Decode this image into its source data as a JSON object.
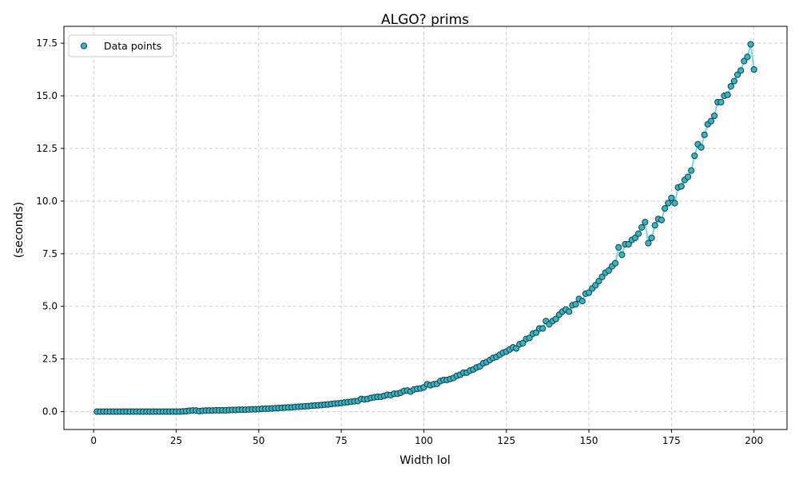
{
  "chart_data": {
    "type": "scatter",
    "title": "ALGO? prims",
    "xlabel": "Width lol",
    "ylabel": "(seconds)",
    "xlim": [
      -9,
      210
    ],
    "ylim": [
      -0.85,
      18.3
    ],
    "xticks": [
      0,
      25,
      50,
      75,
      100,
      125,
      150,
      175,
      200
    ],
    "yticks": [
      0.0,
      2.5,
      5.0,
      7.5,
      10.0,
      12.5,
      15.0,
      17.5
    ],
    "grid": true,
    "legend_position": "top-left",
    "colors": {
      "marker_fill": "#2bb8c9",
      "marker_edge": "#1f3b3e",
      "line": "#5bd3dd",
      "grid": "#cccccc"
    },
    "series": [
      {
        "name": "Data points",
        "x": [
          1,
          2,
          3,
          4,
          5,
          6,
          7,
          8,
          9,
          10,
          11,
          12,
          13,
          14,
          15,
          16,
          17,
          18,
          19,
          20,
          21,
          22,
          23,
          24,
          25,
          26,
          27,
          28,
          29,
          30,
          31,
          32,
          33,
          34,
          35,
          36,
          37,
          38,
          39,
          40,
          41,
          42,
          43,
          44,
          45,
          46,
          47,
          48,
          49,
          50,
          51,
          52,
          53,
          54,
          55,
          56,
          57,
          58,
          59,
          60,
          61,
          62,
          63,
          64,
          65,
          66,
          67,
          68,
          69,
          70,
          71,
          72,
          73,
          74,
          75,
          76,
          77,
          78,
          79,
          80,
          81,
          82,
          83,
          84,
          85,
          86,
          87,
          88,
          89,
          90,
          91,
          92,
          93,
          94,
          95,
          96,
          97,
          98,
          99,
          100,
          101,
          102,
          103,
          104,
          105,
          106,
          107,
          108,
          109,
          110,
          111,
          112,
          113,
          114,
          115,
          116,
          117,
          118,
          119,
          120,
          121,
          122,
          123,
          124,
          125,
          126,
          127,
          128,
          129,
          130,
          131,
          132,
          133,
          134,
          135,
          136,
          137,
          138,
          139,
          140,
          141,
          142,
          143,
          144,
          145,
          146,
          147,
          148,
          149,
          150,
          151,
          152,
          153,
          154,
          155,
          156,
          157,
          158,
          159,
          160,
          161,
          162,
          163,
          164,
          165,
          166,
          167,
          168,
          169,
          170,
          171,
          172,
          173,
          174,
          175,
          176,
          177,
          178,
          179,
          180,
          181,
          182,
          183,
          184,
          185,
          186,
          187,
          188,
          189,
          190,
          191,
          192,
          193,
          194,
          195,
          196,
          197,
          198,
          199,
          200
        ],
        "y": [
          0.0,
          0.0,
          0.0,
          0.0,
          0.0,
          0.0,
          0.0,
          0.0,
          0.0,
          0.0,
          0.0,
          0.0,
          0.0,
          0.0,
          0.0,
          0.0,
          0.0,
          0.0,
          0.0,
          0.0,
          0.0,
          0.0,
          0.0,
          0.0,
          0.0,
          0.0,
          0.01,
          0.02,
          0.04,
          0.05,
          0.05,
          0.02,
          0.04,
          0.05,
          0.05,
          0.05,
          0.06,
          0.06,
          0.06,
          0.06,
          0.07,
          0.08,
          0.08,
          0.09,
          0.09,
          0.09,
          0.1,
          0.11,
          0.11,
          0.12,
          0.13,
          0.14,
          0.14,
          0.15,
          0.16,
          0.17,
          0.18,
          0.19,
          0.2,
          0.2,
          0.22,
          0.23,
          0.24,
          0.25,
          0.26,
          0.28,
          0.29,
          0.3,
          0.31,
          0.33,
          0.34,
          0.36,
          0.38,
          0.39,
          0.41,
          0.43,
          0.45,
          0.47,
          0.49,
          0.5,
          0.6,
          0.58,
          0.6,
          0.65,
          0.68,
          0.7,
          0.7,
          0.75,
          0.8,
          0.78,
          0.85,
          0.85,
          0.9,
          0.98,
          1.0,
          0.95,
          1.05,
          1.08,
          1.1,
          1.15,
          1.3,
          1.25,
          1.3,
          1.32,
          1.45,
          1.5,
          1.5,
          1.55,
          1.6,
          1.7,
          1.75,
          1.85,
          1.85,
          1.95,
          2.0,
          2.1,
          2.15,
          2.3,
          2.35,
          2.45,
          2.55,
          2.6,
          2.7,
          2.8,
          2.85,
          2.95,
          3.05,
          3.0,
          3.2,
          3.25,
          3.45,
          3.5,
          3.7,
          3.75,
          3.95,
          3.95,
          4.3,
          4.15,
          4.3,
          4.4,
          4.6,
          4.75,
          4.85,
          4.75,
          5.05,
          5.1,
          5.35,
          5.25,
          5.6,
          5.65,
          5.85,
          6.0,
          6.2,
          6.4,
          6.6,
          6.7,
          6.9,
          7.05,
          7.8,
          7.45,
          7.95,
          7.95,
          8.15,
          8.25,
          8.45,
          8.75,
          9.0,
          8.0,
          8.25,
          8.85,
          9.15,
          9.1,
          9.65,
          9.9,
          10.15,
          9.9,
          10.65,
          10.7,
          11.0,
          11.15,
          11.45,
          12.15,
          12.7,
          12.55,
          13.15,
          13.65,
          13.8,
          14.05,
          14.7,
          14.7,
          15.0,
          15.05,
          15.45,
          15.7,
          16.0,
          16.2,
          16.65,
          16.85,
          17.45,
          16.25
        ]
      }
    ]
  }
}
